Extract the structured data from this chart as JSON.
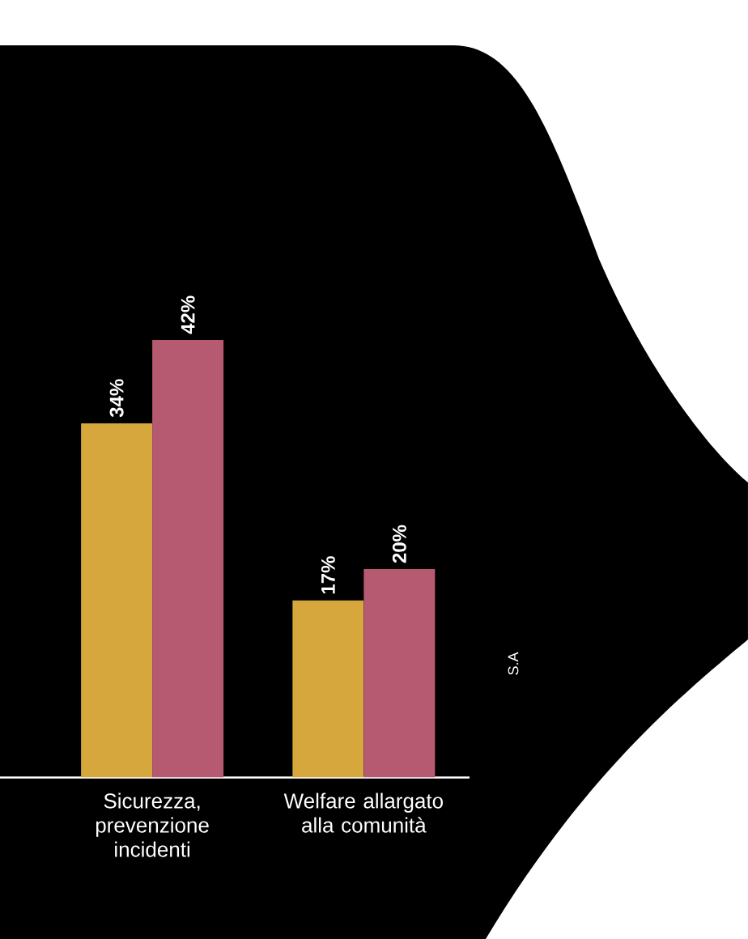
{
  "chart_data": {
    "type": "bar",
    "categories": [
      "Sicurezza, prevenzione incidenti",
      "Welfare allargato alla comunità"
    ],
    "series": [
      {
        "color": "#d5a73c",
        "values": [
          34,
          17
        ],
        "value_labels": [
          "34%",
          "17%"
        ]
      },
      {
        "color": "#b65a72",
        "values": [
          42,
          20
        ],
        "value_labels": [
          "42%",
          "20%"
        ]
      }
    ],
    "annotations": [
      "S.A"
    ]
  }
}
